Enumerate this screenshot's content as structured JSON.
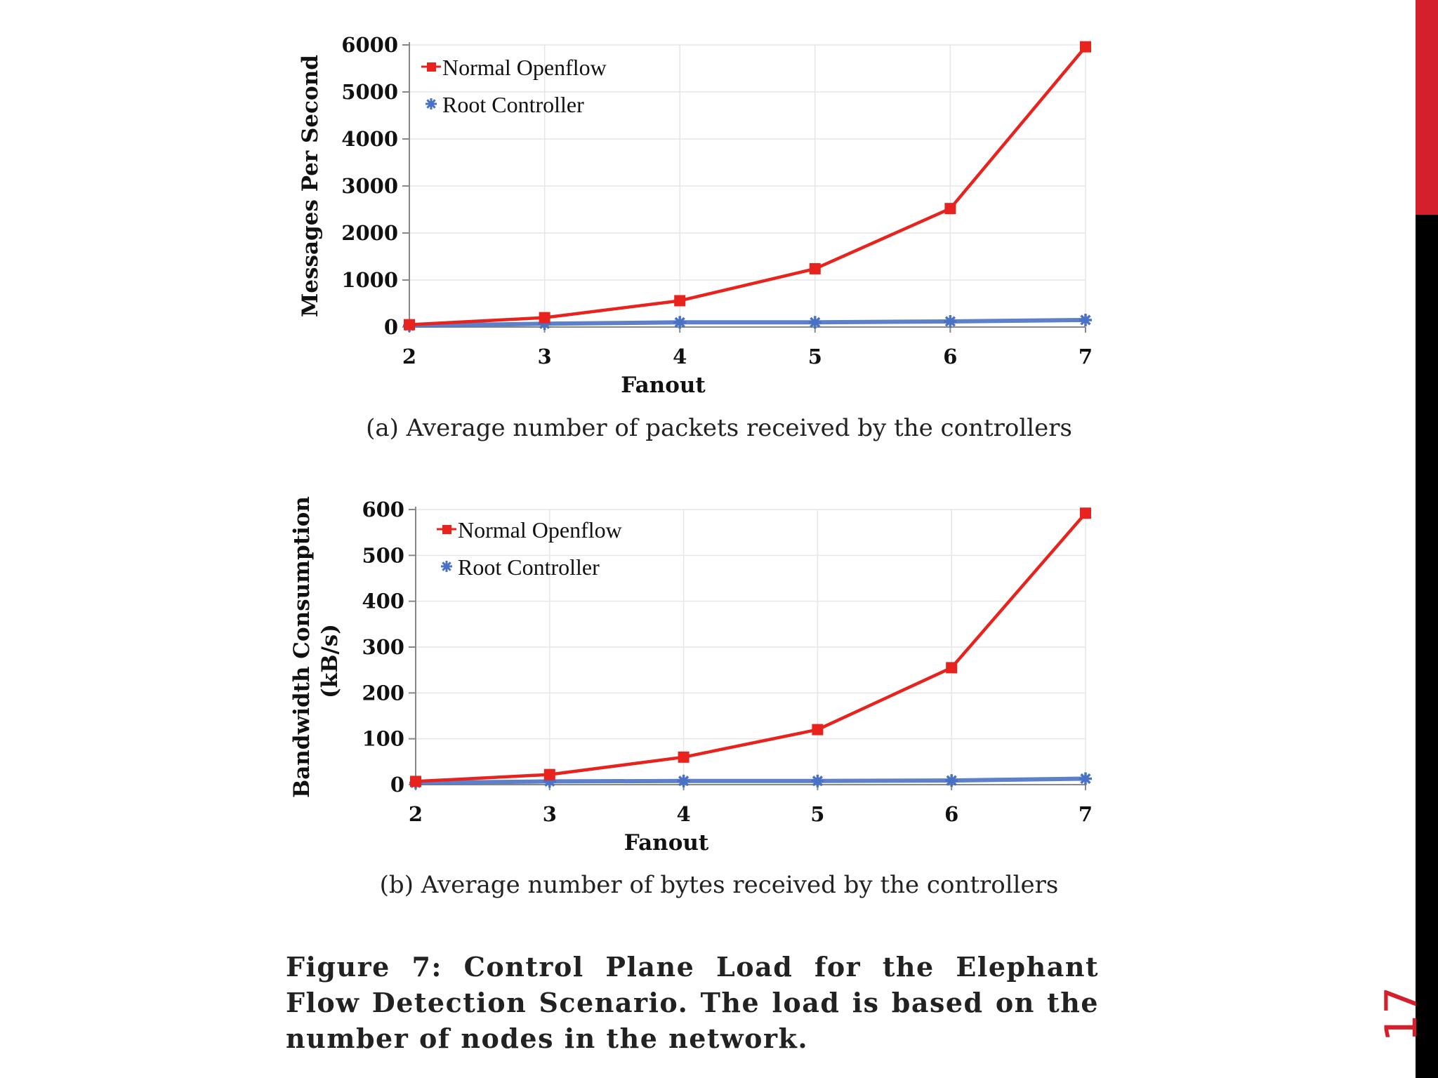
{
  "slide": {
    "page_number": "17",
    "figure_caption": "Figure 7:  Control Plane Load for the Elephant Flow Detection Scenario. The load is based on the number of nodes in the network.",
    "accent_color": "#d41f2c",
    "sidebar_colors": [
      "#d41f2c",
      "#000000"
    ]
  },
  "chart_data": [
    {
      "type": "line",
      "subcaption": "(a) Average number of packets received by the controllers",
      "xlabel": "Fanout",
      "ylabel": "Messages Per Second",
      "x": [
        2,
        3,
        4,
        5,
        6,
        7
      ],
      "xticks": [
        "2",
        "3",
        "4",
        "5",
        "6",
        "7"
      ],
      "ylim": [
        0,
        6000
      ],
      "yticks": [
        "0",
        "1000",
        "2000",
        "3000",
        "4000",
        "5000",
        "6000"
      ],
      "grid": true,
      "legend_position": "top-left",
      "series": [
        {
          "name": "Normal Openflow",
          "color": "#e8231d",
          "marker": "square",
          "values": [
            50,
            200,
            560,
            1240,
            2520,
            5960
          ]
        },
        {
          "name": "Root Controller",
          "color": "#4a72c4",
          "marker": "star",
          "values": [
            30,
            70,
            100,
            100,
            120,
            150
          ]
        }
      ]
    },
    {
      "type": "line",
      "subcaption": "(b) Average number of bytes received by the controllers",
      "xlabel": "Fanout",
      "ylabel": "Bandwidth Consumption",
      "ylabel2": "(kB/s)",
      "x": [
        2,
        3,
        4,
        5,
        6,
        7
      ],
      "xticks": [
        "2",
        "3",
        "4",
        "5",
        "6",
        "7"
      ],
      "ylim": [
        0,
        600
      ],
      "yticks": [
        "0",
        "100",
        "200",
        "300",
        "400",
        "500",
        "600"
      ],
      "grid": true,
      "legend_position": "top-left",
      "series": [
        {
          "name": "Normal Openflow",
          "color": "#e8231d",
          "marker": "square",
          "values": [
            7,
            22,
            60,
            120,
            255,
            592
          ]
        },
        {
          "name": "Root Controller",
          "color": "#4a72c4",
          "marker": "star",
          "values": [
            4,
            7,
            8,
            8,
            9,
            13
          ]
        }
      ]
    }
  ]
}
